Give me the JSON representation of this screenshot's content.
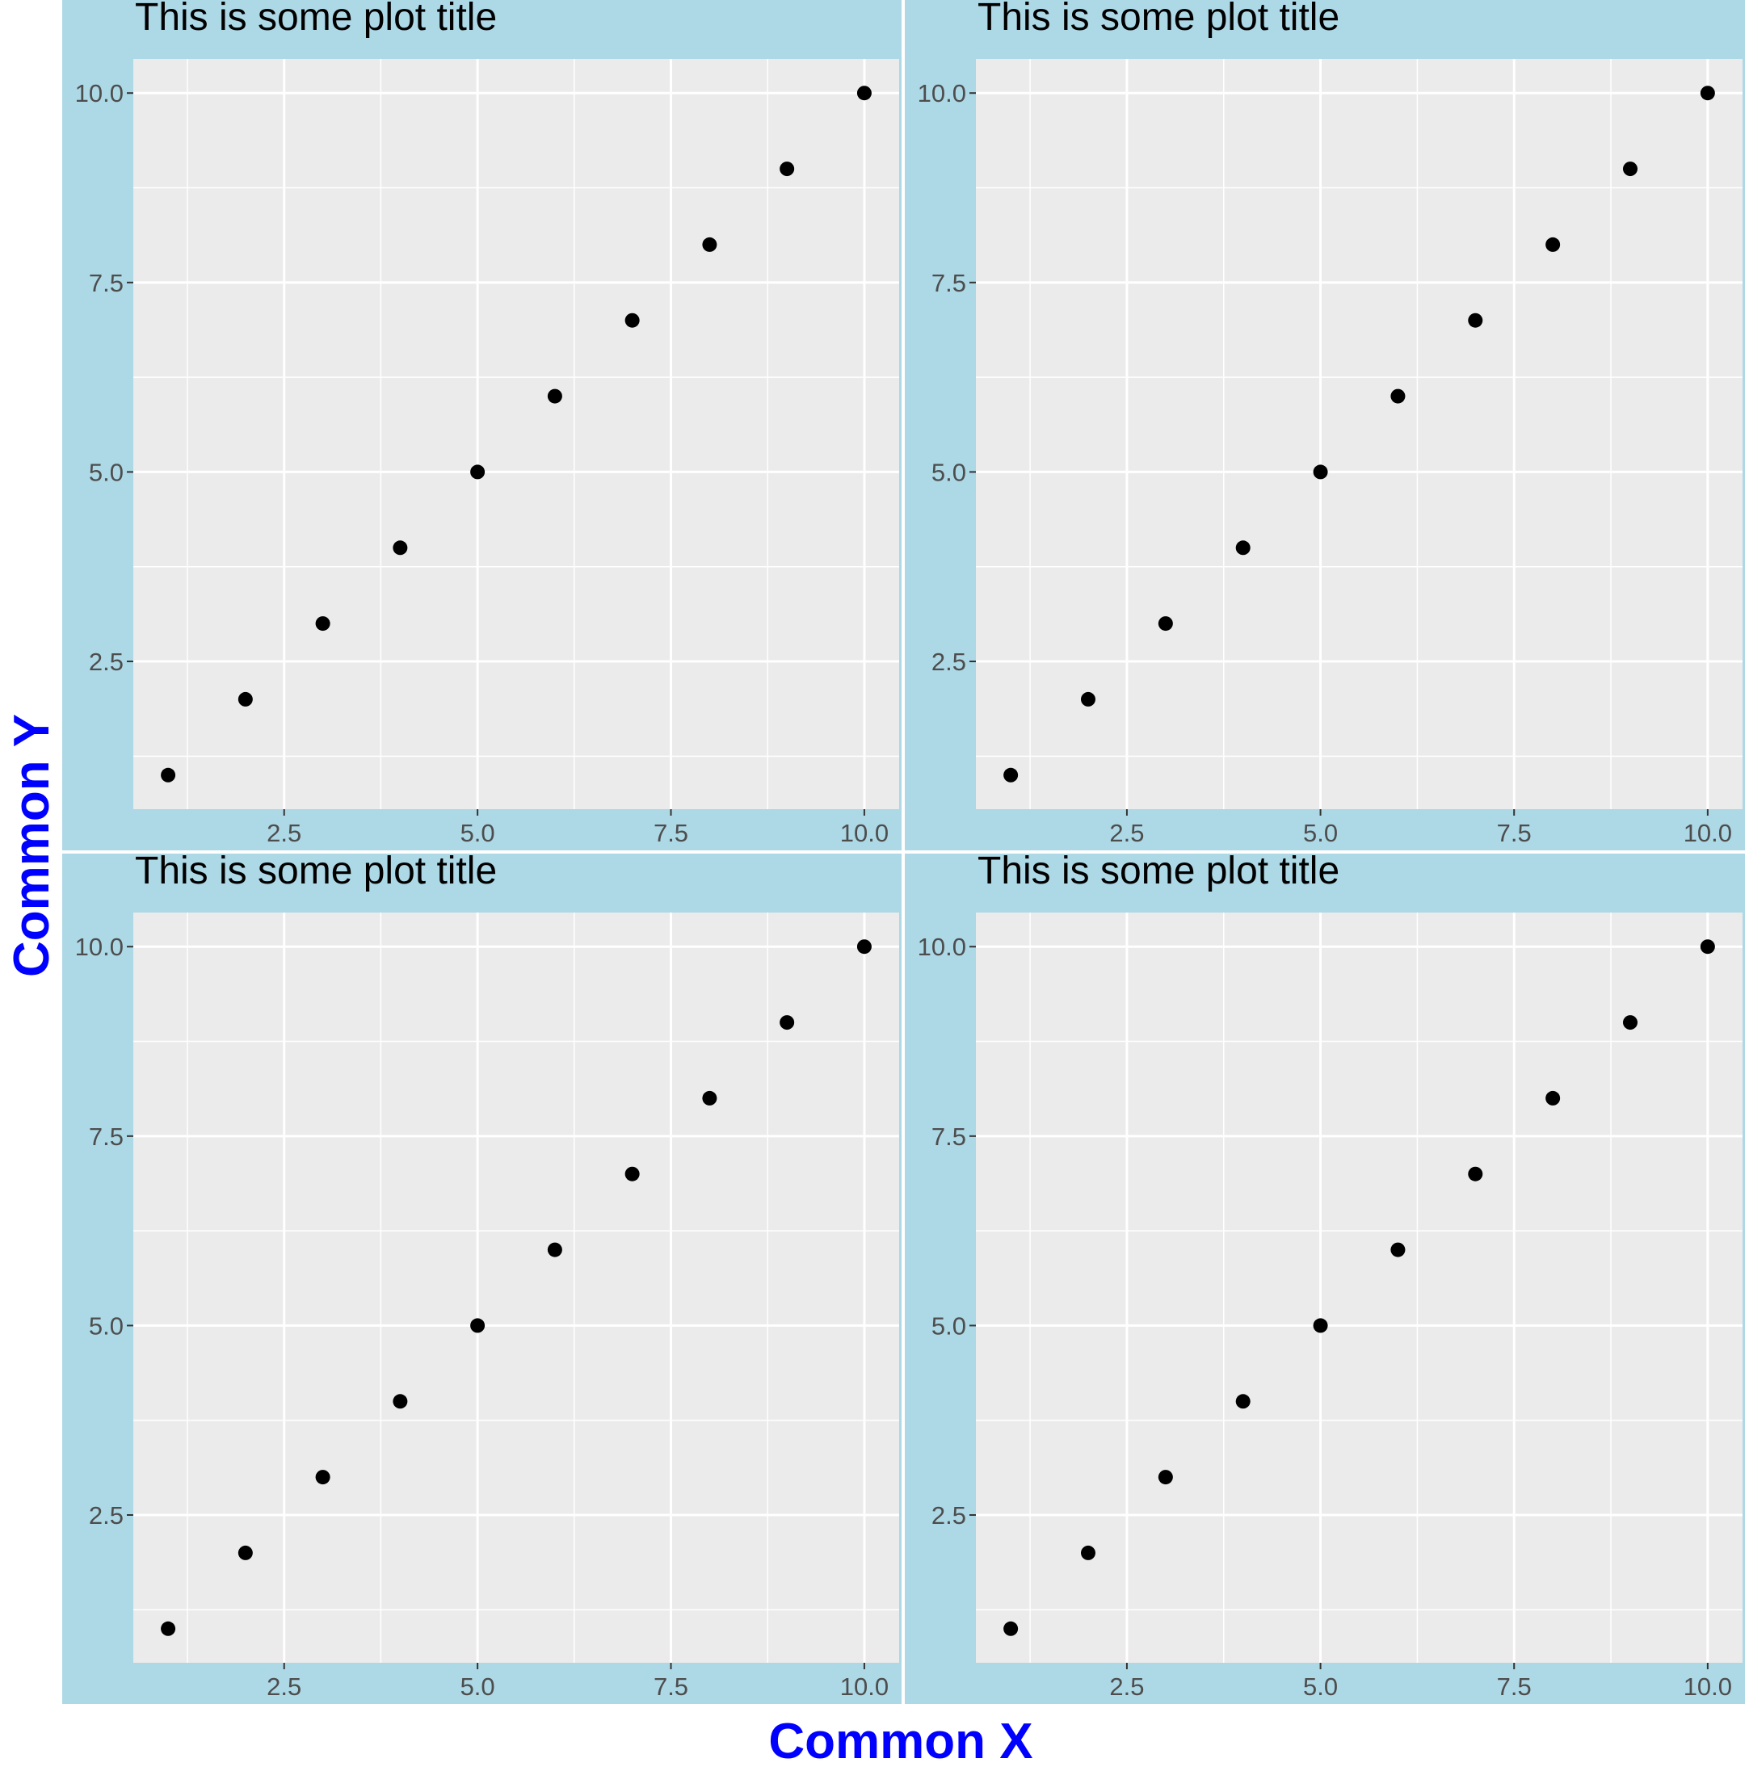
{
  "chart_data": [
    {
      "type": "scatter",
      "title": "This is some plot title",
      "x": [
        1,
        2,
        3,
        4,
        5,
        6,
        7,
        8,
        9,
        10
      ],
      "y": [
        1,
        2,
        3,
        4,
        5,
        6,
        7,
        8,
        9,
        10
      ],
      "xlim": [
        1,
        10
      ],
      "ylim": [
        1,
        10
      ],
      "x_ticks": [
        "2.5",
        "5.0",
        "7.5",
        "10.0"
      ],
      "y_ticks": [
        "2.5",
        "5.0",
        "7.5",
        "10.0"
      ],
      "grid": true,
      "panel_background": "#add8e6",
      "plot_background": "#ebebeb"
    },
    {
      "type": "scatter",
      "title": "This is some plot title",
      "x": [
        1,
        2,
        3,
        4,
        5,
        6,
        7,
        8,
        9,
        10
      ],
      "y": [
        1,
        2,
        3,
        4,
        5,
        6,
        7,
        8,
        9,
        10
      ],
      "xlim": [
        1,
        10
      ],
      "ylim": [
        1,
        10
      ],
      "x_ticks": [
        "2.5",
        "5.0",
        "7.5",
        "10.0"
      ],
      "y_ticks": [
        "2.5",
        "5.0",
        "7.5",
        "10.0"
      ],
      "grid": true,
      "panel_background": "#add8e6",
      "plot_background": "#ebebeb"
    },
    {
      "type": "scatter",
      "title": "This is some plot title",
      "x": [
        1,
        2,
        3,
        4,
        5,
        6,
        7,
        8,
        9,
        10
      ],
      "y": [
        1,
        2,
        3,
        4,
        5,
        6,
        7,
        8,
        9,
        10
      ],
      "xlim": [
        1,
        10
      ],
      "ylim": [
        1,
        10
      ],
      "x_ticks": [
        "2.5",
        "5.0",
        "7.5",
        "10.0"
      ],
      "y_ticks": [
        "2.5",
        "5.0",
        "7.5",
        "10.0"
      ],
      "grid": true,
      "panel_background": "#add8e6",
      "plot_background": "#ebebeb"
    },
    {
      "type": "scatter",
      "title": "This is some plot title",
      "x": [
        1,
        2,
        3,
        4,
        5,
        6,
        7,
        8,
        9,
        10
      ],
      "y": [
        1,
        2,
        3,
        4,
        5,
        6,
        7,
        8,
        9,
        10
      ],
      "xlim": [
        1,
        10
      ],
      "ylim": [
        1,
        10
      ],
      "x_ticks": [
        "2.5",
        "5.0",
        "7.5",
        "10.0"
      ],
      "y_ticks": [
        "2.5",
        "5.0",
        "7.5",
        "10.0"
      ],
      "grid": true,
      "panel_background": "#add8e6",
      "plot_background": "#ebebeb"
    }
  ],
  "common_labels": {
    "x": "Common X",
    "y": "Common Y",
    "color": "#0000ff"
  }
}
